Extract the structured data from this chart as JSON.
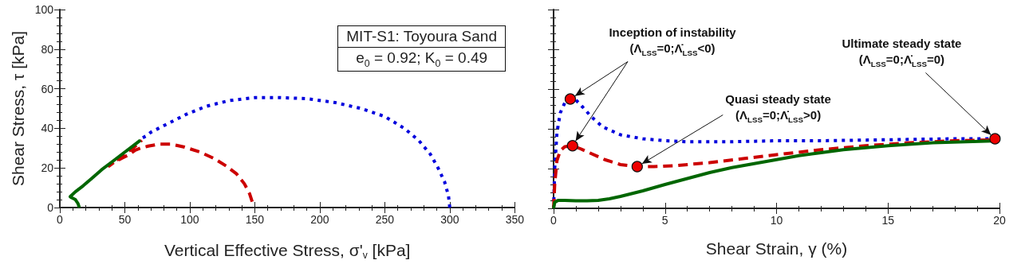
{
  "chart_data": [
    {
      "type": "line",
      "xlabel": "Vertical Effective Stress, σ'$_{v}$ [kPa]",
      "ylabel": "Shear Stress, τ [kPa]",
      "xlim": [
        0,
        350
      ],
      "xticks": [
        0,
        50,
        100,
        150,
        200,
        250,
        300,
        350
      ],
      "ylim": [
        0,
        100
      ],
      "yticks": [
        0,
        20,
        40,
        60,
        80,
        100
      ],
      "grid": false,
      "annotations": [
        "MIT-S1: Toyoura Sand",
        "e$_{0}$ = 0.92; K$_{0}$ = 0.49"
      ],
      "series": [
        {
          "color": "#0000dd",
          "line_style": "dotted",
          "x": [
            300,
            299,
            296,
            291,
            285,
            276,
            265,
            250,
            232,
            212,
            190,
            170,
            150,
            130,
            112,
            97,
            85,
            76,
            70,
            66,
            63
          ],
          "values": [
            0,
            6,
            13,
            20,
            27,
            34,
            40,
            46,
            50,
            53,
            55,
            55.5,
            55.5,
            54,
            51,
            47,
            43,
            40,
            38,
            36,
            35
          ]
        },
        {
          "color": "#cc0000",
          "line_style": "dashed",
          "x": [
            148,
            146,
            142,
            136,
            128,
            118,
            108,
            96,
            86,
            76,
            68,
            62,
            58,
            54,
            48,
            42,
            38,
            46,
            54,
            60,
            63
          ],
          "values": [
            3,
            7,
            12,
            17,
            21,
            25,
            28,
            30.5,
            32,
            32,
            31,
            30,
            29,
            27,
            25,
            23,
            21,
            25,
            29,
            32,
            34
          ]
        },
        {
          "color": "#006600",
          "line_style": "solid",
          "x": [
            15,
            14,
            12,
            9,
            8,
            12,
            18,
            25,
            32,
            40,
            48,
            56,
            62
          ],
          "values": [
            0,
            2,
            4,
            5,
            5.5,
            8,
            11,
            15,
            19,
            23,
            27,
            31,
            34
          ]
        }
      ]
    },
    {
      "type": "line",
      "xlabel": "Shear Strain, γ (%)",
      "xlim": [
        0,
        20
      ],
      "xticks": [
        0,
        5,
        10,
        15,
        20
      ],
      "ylim": [
        0,
        100
      ],
      "yticks": [
        0,
        20,
        40,
        60,
        80,
        100
      ],
      "tick_labels": "x",
      "grid": false,
      "annotations": [
        {
          "text": "Inception of instability\n(Λ$_{LSS}$=0;Λ̇$_{LSS}$<0)",
          "x": 0.75,
          "y": 55
        },
        {
          "text": "Quasi steady state\n(Λ$_{LSS}$=0;Λ̇$_{LSS}$>0)",
          "x": 3.75,
          "y": 21
        },
        {
          "text": "Ultimate steady state\n(Λ$_{LSS}$=0;Λ̇$_{LSS}$=0)",
          "x": 19.8,
          "y": 35
        }
      ],
      "series": [
        {
          "color": "#0000dd",
          "line_style": "dotted",
          "x": [
            0,
            0.05,
            0.15,
            0.3,
            0.5,
            0.75,
            1,
            1.3,
            1.7,
            2.2,
            3,
            4,
            5,
            6,
            8,
            10,
            12,
            15,
            18,
            20
          ],
          "values": [
            0,
            20,
            38,
            48,
            53,
            55,
            54.5,
            51,
            46,
            41,
            37,
            35,
            34,
            33.5,
            33.5,
            34,
            34,
            34.5,
            35,
            35
          ]
        },
        {
          "color": "#cc0000",
          "line_style": "dashed",
          "x": [
            0,
            0.05,
            0.15,
            0.3,
            0.5,
            0.85,
            1.2,
            1.7,
            2.3,
            3,
            3.75,
            4.5,
            5.5,
            7,
            8.5,
            10,
            12,
            14,
            16,
            18,
            20
          ],
          "values": [
            0,
            12,
            24,
            29,
            31,
            31.5,
            30,
            27.5,
            24.5,
            22,
            21,
            21,
            21.5,
            23,
            25,
            27,
            29.5,
            31.5,
            33,
            34,
            34.5
          ]
        },
        {
          "color": "#006600",
          "line_style": "solid",
          "x": [
            0,
            0.05,
            0.2,
            0.5,
            1,
            1.5,
            2,
            2.5,
            3,
            4,
            5,
            6,
            7,
            8,
            9,
            10,
            11,
            12,
            13,
            15,
            17,
            20
          ],
          "values": [
            0,
            3,
            4,
            4,
            3.8,
            3.8,
            4,
            4.8,
            6,
            8.8,
            12,
            15,
            18,
            20.5,
            22.5,
            24.5,
            26.5,
            28,
            29.5,
            31.5,
            33,
            34
          ]
        },
        {
          "type": "scatter",
          "color": "#ee0000",
          "marker": "circle",
          "x": [
            0.75,
            0.85,
            3.75,
            19.8
          ],
          "values": [
            55,
            31.5,
            21,
            35
          ]
        }
      ]
    }
  ]
}
